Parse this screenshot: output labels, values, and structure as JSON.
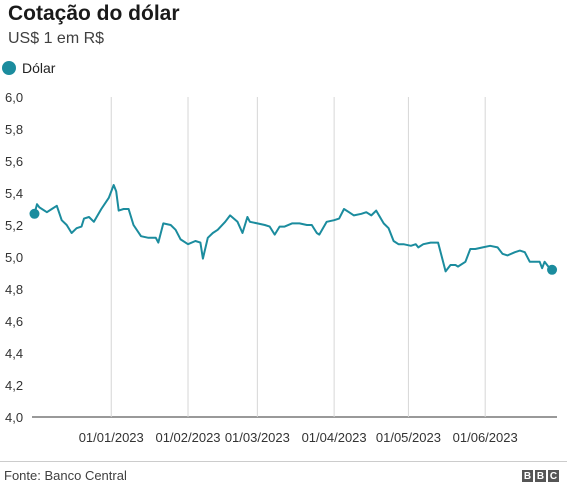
{
  "header": {
    "title": "Cotação do dólar",
    "subtitle": "US$ 1 em R$"
  },
  "legend": {
    "label": "Dólar",
    "color": "#1b8c9e"
  },
  "footer": {
    "source": "Fonte: Banco Central",
    "logo_letters": [
      "B",
      "B",
      "C"
    ]
  },
  "chart_data": {
    "type": "line",
    "title": "Cotação do dólar",
    "subtitle": "US$ 1 em R$",
    "ylim": [
      4.0,
      6.0
    ],
    "y_ticks": [
      "6,0",
      "5,8",
      "5,6",
      "5,4",
      "5,2",
      "5,0",
      "4,8",
      "4,6",
      "4,4",
      "4,2",
      "4,0"
    ],
    "y_tick_values": [
      6.0,
      5.8,
      5.6,
      5.4,
      5.2,
      5.0,
      4.8,
      4.6,
      4.4,
      4.2,
      4.0
    ],
    "x_range": [
      "2022-11-30",
      "2023-06-30"
    ],
    "x_ticks": [
      {
        "label": "01/01/2023",
        "date": "2023-01-01"
      },
      {
        "label": "01/02/2023",
        "date": "2023-02-01"
      },
      {
        "label": "01/03/2023",
        "date": "2023-03-01"
      },
      {
        "label": "01/04/2023",
        "date": "2023-04-01"
      },
      {
        "label": "01/05/2023",
        "date": "2023-05-01"
      },
      {
        "label": "01/06/2023",
        "date": "2023-06-01"
      }
    ],
    "grid": "vertical",
    "legend_position": "top-left",
    "series": [
      {
        "name": "Dólar",
        "color": "#1b8c9e",
        "points": [
          [
            "2022-12-01",
            5.27
          ],
          [
            "2022-12-02",
            5.33
          ],
          [
            "2022-12-03",
            5.31
          ],
          [
            "2022-12-06",
            5.28
          ],
          [
            "2022-12-08",
            5.3
          ],
          [
            "2022-12-10",
            5.32
          ],
          [
            "2022-12-12",
            5.23
          ],
          [
            "2022-12-14",
            5.2
          ],
          [
            "2022-12-16",
            5.15
          ],
          [
            "2022-12-18",
            5.18
          ],
          [
            "2022-12-20",
            5.19
          ],
          [
            "2022-12-21",
            5.24
          ],
          [
            "2022-12-23",
            5.25
          ],
          [
            "2022-12-25",
            5.22
          ],
          [
            "2022-12-28",
            5.3
          ],
          [
            "2022-12-31",
            5.37
          ],
          [
            "2023-01-02",
            5.45
          ],
          [
            "2023-01-03",
            5.41
          ],
          [
            "2023-01-04",
            5.29
          ],
          [
            "2023-01-06",
            5.3
          ],
          [
            "2023-01-08",
            5.3
          ],
          [
            "2023-01-10",
            5.2
          ],
          [
            "2023-01-13",
            5.13
          ],
          [
            "2023-01-16",
            5.12
          ],
          [
            "2023-01-19",
            5.12
          ],
          [
            "2023-01-20",
            5.09
          ],
          [
            "2023-01-22",
            5.21
          ],
          [
            "2023-01-25",
            5.2
          ],
          [
            "2023-01-27",
            5.17
          ],
          [
            "2023-01-29",
            5.11
          ],
          [
            "2023-02-01",
            5.08
          ],
          [
            "2023-02-04",
            5.1
          ],
          [
            "2023-02-06",
            5.09
          ],
          [
            "2023-02-07",
            4.99
          ],
          [
            "2023-02-09",
            5.12
          ],
          [
            "2023-02-11",
            5.15
          ],
          [
            "2023-02-13",
            5.17
          ],
          [
            "2023-02-16",
            5.22
          ],
          [
            "2023-02-18",
            5.26
          ],
          [
            "2023-02-21",
            5.22
          ],
          [
            "2023-02-23",
            5.15
          ],
          [
            "2023-02-25",
            5.25
          ],
          [
            "2023-02-26",
            5.22
          ],
          [
            "2023-03-01",
            5.21
          ],
          [
            "2023-03-04",
            5.2
          ],
          [
            "2023-03-06",
            5.19
          ],
          [
            "2023-03-08",
            5.14
          ],
          [
            "2023-03-10",
            5.19
          ],
          [
            "2023-03-12",
            5.19
          ],
          [
            "2023-03-15",
            5.21
          ],
          [
            "2023-03-18",
            5.21
          ],
          [
            "2023-03-21",
            5.2
          ],
          [
            "2023-03-23",
            5.2
          ],
          [
            "2023-03-25",
            5.15
          ],
          [
            "2023-03-26",
            5.14
          ],
          [
            "2023-03-29",
            5.22
          ],
          [
            "2023-04-01",
            5.23
          ],
          [
            "2023-04-03",
            5.24
          ],
          [
            "2023-04-05",
            5.3
          ],
          [
            "2023-04-07",
            5.28
          ],
          [
            "2023-04-09",
            5.26
          ],
          [
            "2023-04-12",
            5.27
          ],
          [
            "2023-04-14",
            5.28
          ],
          [
            "2023-04-16",
            5.26
          ],
          [
            "2023-04-18",
            5.29
          ],
          [
            "2023-04-21",
            5.21
          ],
          [
            "2023-04-23",
            5.18
          ],
          [
            "2023-04-25",
            5.1
          ],
          [
            "2023-04-27",
            5.08
          ],
          [
            "2023-04-29",
            5.08
          ],
          [
            "2023-05-02",
            5.07
          ],
          [
            "2023-05-04",
            5.08
          ],
          [
            "2023-05-05",
            5.06
          ],
          [
            "2023-05-07",
            5.08
          ],
          [
            "2023-05-10",
            5.09
          ],
          [
            "2023-05-13",
            5.09
          ],
          [
            "2023-05-16",
            4.91
          ],
          [
            "2023-05-18",
            4.95
          ],
          [
            "2023-05-20",
            4.95
          ],
          [
            "2023-05-21",
            4.94
          ],
          [
            "2023-05-24",
            4.97
          ],
          [
            "2023-05-26",
            5.05
          ],
          [
            "2023-05-28",
            5.05
          ],
          [
            "2023-05-31",
            5.06
          ],
          [
            "2023-06-03",
            5.07
          ],
          [
            "2023-06-06",
            5.06
          ],
          [
            "2023-06-08",
            5.02
          ],
          [
            "2023-06-10",
            5.01
          ],
          [
            "2023-06-13",
            5.03
          ],
          [
            "2023-06-15",
            5.04
          ],
          [
            "2023-06-17",
            5.03
          ],
          [
            "2023-06-19",
            4.97
          ],
          [
            "2023-06-22",
            4.97
          ],
          [
            "2023-06-23",
            4.97
          ],
          [
            "2023-06-24",
            4.93
          ],
          [
            "2023-06-25",
            4.97
          ],
          [
            "2023-06-27",
            4.93
          ],
          [
            "2023-06-28",
            4.92
          ]
        ]
      }
    ]
  }
}
